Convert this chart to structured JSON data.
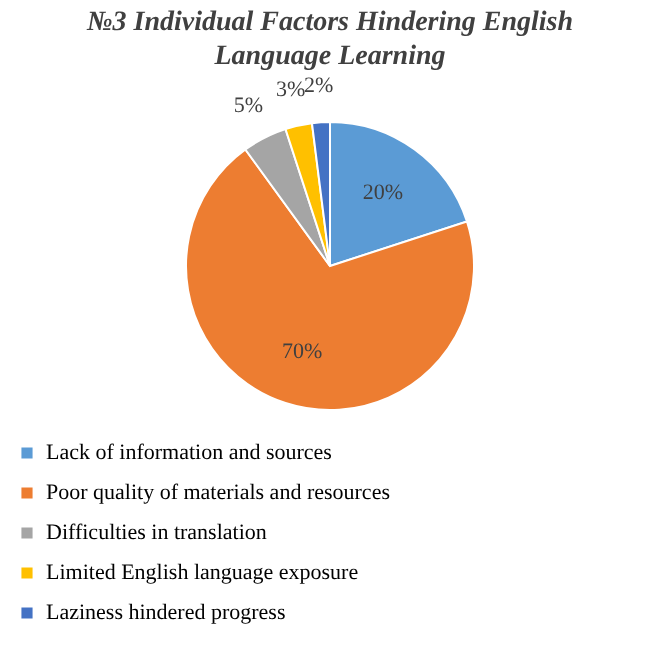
{
  "chart_data": {
    "type": "pie",
    "title": "№3 Individual Factors Hindering English Language Learning",
    "categories": [
      "Lack of information and sources",
      "Poor quality of materials and resources",
      "Difficulties in translation",
      "Limited English language  exposure",
      "Laziness hindered progress"
    ],
    "values": [
      20,
      70,
      5,
      3,
      2
    ],
    "colors": [
      "#5b9bd5",
      "#ed7d31",
      "#a5a5a5",
      "#ffc000",
      "#4472c4"
    ],
    "value_labels": [
      "20%",
      "70%",
      "5%",
      "3%",
      "2%"
    ],
    "legend": "bottom"
  }
}
